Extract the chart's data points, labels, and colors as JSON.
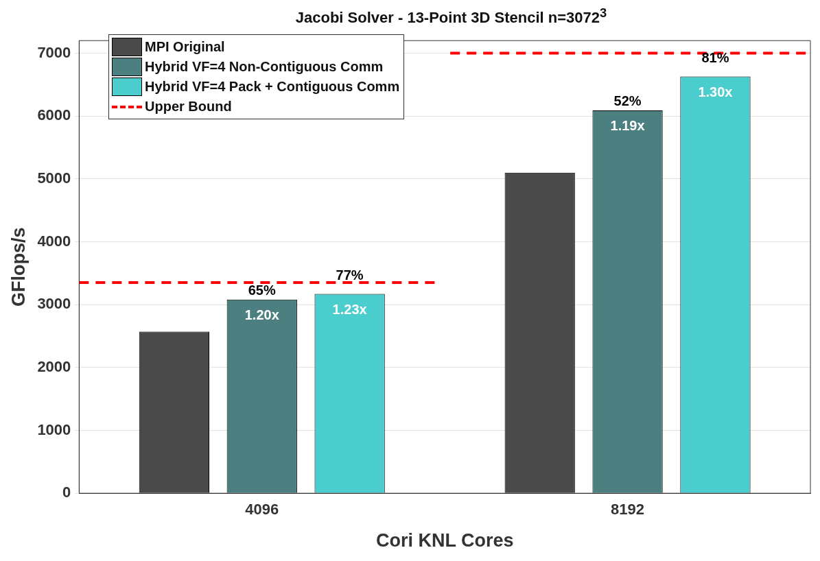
{
  "chart_data": {
    "type": "bar",
    "title": "Jacobi Solver - 13-Point 3D Stencil n=3072$^{3}$",
    "xlabel": "Cori KNL Cores",
    "ylabel": "GFlops/s",
    "categories": [
      "4096",
      "8192"
    ],
    "series": [
      {
        "name": "MPI Original",
        "color": "#4a4a4a",
        "values": [
          2570,
          5100
        ]
      },
      {
        "name": "Hybrid VF=4 Non-Contiguous Comm",
        "color": "#4c7f7f",
        "values": [
          3080,
          6090
        ]
      },
      {
        "name": "Hybrid VF=4 Pack + Contiguous Comm",
        "color": "#4ccdcd",
        "values": [
          3170,
          6630
        ]
      }
    ],
    "ref_lines": [
      {
        "axis": "y",
        "value": 3350,
        "label": "Upper Bound",
        "color": "#ff0000",
        "line_style": "dashed"
      },
      {
        "axis": "y",
        "value": 7000,
        "color": "#ff0000",
        "line_style": "dashed"
      }
    ],
    "annotations": [
      "65%",
      "1.20x",
      "77%",
      "1.23x",
      "52%",
      "1.19x",
      "81%",
      "1.30x"
    ],
    "ylim": [
      0,
      7200
    ],
    "yticks": [
      0,
      1000,
      2000,
      3000,
      4000,
      5000,
      6000,
      7000
    ],
    "grid": "y",
    "legend": "top left"
  }
}
